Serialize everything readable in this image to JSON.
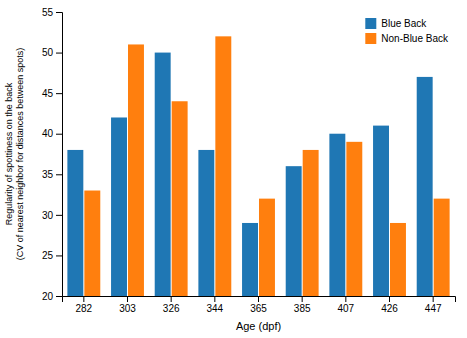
{
  "chart_data": {
    "type": "bar",
    "xlabel": "Age (dpf)",
    "ylabel": "Regularity of spottiness on the back\n(CV of nearest neighbor for distances between spots)",
    "categories": [
      "282",
      "303",
      "326",
      "344",
      "365",
      "385",
      "407",
      "426",
      "447"
    ],
    "series": [
      {
        "name": "Blue Back",
        "values": [
          38,
          42,
          50,
          38,
          29,
          36,
          40,
          41,
          47
        ]
      },
      {
        "name": "Non-Blue Back",
        "values": [
          33,
          51,
          44,
          52,
          32,
          38,
          39,
          29,
          32
        ]
      }
    ],
    "ylim": [
      20,
      55
    ],
    "yticks": [
      20,
      25,
      30,
      35,
      40,
      45,
      50,
      55
    ],
    "legend": "upper right"
  }
}
